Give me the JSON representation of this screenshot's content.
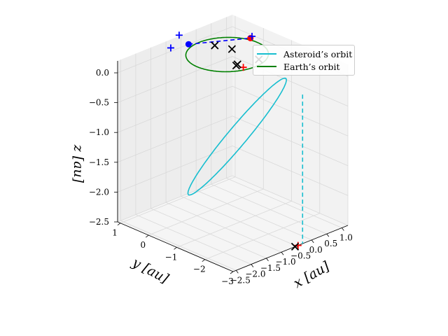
{
  "chart_data": {
    "type": "line",
    "projection": "3d",
    "title": "",
    "xlabel": "x [au]",
    "ylabel": "y [au]",
    "zlabel": "z [au]",
    "xlim": [
      -2.6,
      1.2
    ],
    "ylim": [
      -3.0,
      1.1
    ],
    "zlim": [
      -2.5,
      0.2
    ],
    "x_ticks": [
      "−2.5",
      "−2.0",
      "−1.5",
      "−1.0",
      "−0.5",
      "0.0",
      "0.5",
      "1.0"
    ],
    "y_ticks": [
      "1",
      "0",
      "−1",
      "−2",
      "−3"
    ],
    "z_ticks": [
      "0.0",
      "−0.5",
      "−1.0",
      "−1.5",
      "−2.0",
      "−2.5"
    ],
    "legend_position": "top-right",
    "colors": {
      "asteroid": "#17becf",
      "earth": "#008000",
      "blue": "#0000ff",
      "red": "#ff0000",
      "black": "#000000",
      "grid": "#d9d9d9",
      "pane": "#f2f2f2"
    },
    "series": [
      {
        "name": "Asteroid’s orbit",
        "kind": "ellipse",
        "color": "#17becf",
        "center": [
          -0.6,
          -1.0,
          -1.05
        ],
        "axis_u": [
          0.6,
          0.0,
          0.0
        ],
        "axis_v": [
          0.35,
          2.0,
          -1.45
        ]
      },
      {
        "name": "Earth’s orbit",
        "kind": "ellipse",
        "color": "#008000",
        "center": [
          0.0,
          0.0,
          0.0
        ],
        "axis_u": [
          1.0,
          0.0,
          0.0
        ],
        "axis_v": [
          0.0,
          1.0,
          0.0
        ]
      }
    ],
    "dashed_lines": [
      {
        "name": "vertical-drop",
        "color": "#17becf",
        "from": [
          -0.3,
          -3.0,
          0.0
        ],
        "to": [
          -0.3,
          -3.0,
          -2.5
        ]
      },
      {
        "name": "blue-link",
        "color": "#0000ff",
        "from": [
          -0.25,
          1.1,
          0.0
        ],
        "to": [
          1.05,
          0.3,
          0.0
        ]
      }
    ],
    "markers": [
      {
        "symbol": "dot",
        "color": "#0000ff",
        "pos": [
          -0.25,
          1.1,
          0.0
        ]
      },
      {
        "symbol": "dot",
        "color": "#ff0000",
        "pos": [
          1.05,
          0.3,
          0.0
        ]
      },
      {
        "symbol": "plus",
        "color": "#0000ff",
        "pos": [
          -0.7,
          1.25,
          0.0
        ]
      },
      {
        "symbol": "plus",
        "color": "#0000ff",
        "pos": [
          -0.05,
          1.65,
          0.0
        ]
      },
      {
        "symbol": "plus",
        "color": "#0000ff",
        "pos": [
          1.15,
          0.35,
          0.0
        ]
      },
      {
        "symbol": "plus",
        "color": "#ff0000",
        "pos": [
          -0.35,
          -0.95,
          0.05
        ]
      },
      {
        "symbol": "plus",
        "color": "#ff0000",
        "pos": [
          -0.45,
          -3.0,
          -2.5
        ]
      },
      {
        "symbol": "cross",
        "color": "#000000",
        "pos": [
          -0.45,
          -0.85,
          0.1
        ]
      },
      {
        "symbol": "cross",
        "color": "#000000",
        "pos": [
          -0.4,
          -0.75,
          0.05
        ]
      },
      {
        "symbol": "cross",
        "color": "#000000",
        "pos": [
          0.35,
          -0.75,
          0.0
        ]
      },
      {
        "symbol": "cross",
        "color": "#000000",
        "pos": [
          0.15,
          0.6,
          0.0
        ]
      },
      {
        "symbol": "cross",
        "color": "#000000",
        "pos": [
          0.3,
          0.15,
          0.0
        ]
      },
      {
        "symbol": "cross",
        "color": "#000000",
        "pos": [
          -0.55,
          -3.0,
          -2.5
        ]
      }
    ]
  }
}
